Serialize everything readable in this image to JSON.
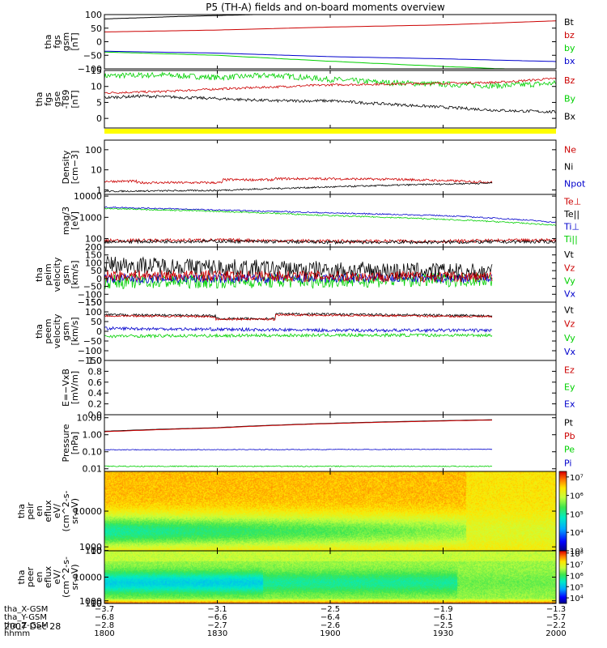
{
  "title": "P5 (TH-A) fields and on-board moments overview",
  "date_label": "2007 Dec 28",
  "colors": {
    "black": "#000000",
    "red": "#cc0000",
    "green": "#00d000",
    "blue": "#0000cc",
    "yellow": "#ffff00"
  },
  "chart_data": [
    {
      "type": "line",
      "ylabel": [
        "tha",
        "fgs",
        "gsm",
        "[nT]"
      ],
      "ylim": [
        -100,
        100
      ],
      "yticks": [
        {
          "v": 100,
          "t": "100"
        },
        {
          "v": 50,
          "t": "50"
        },
        {
          "v": 0,
          "t": "0"
        },
        {
          "v": -50,
          "t": "−50"
        },
        {
          "v": -100,
          "t": "−100"
        }
      ],
      "legend": [
        {
          "name": "Bt",
          "color": "black"
        },
        {
          "name": "bz",
          "color": "red"
        },
        {
          "name": "by",
          "color": "green"
        },
        {
          "name": "bx",
          "color": "blue"
        }
      ],
      "series": [
        {
          "name": "Bt",
          "color": "black",
          "x": [
            1800,
            1820,
            1840,
            1850
          ],
          "y": [
            84,
            93,
            100,
            101
          ]
        },
        {
          "name": "bz",
          "color": "red",
          "x": [
            1800,
            1830,
            1900,
            1930,
            2000
          ],
          "y": [
            36,
            43,
            54,
            62,
            77
          ]
        },
        {
          "name": "by",
          "color": "green",
          "x": [
            1800,
            1830,
            1900,
            1930,
            1950
          ],
          "y": [
            -38,
            -50,
            -72,
            -91,
            -102
          ]
        },
        {
          "name": "bx",
          "color": "blue",
          "x": [
            1800,
            1830,
            1900,
            1930,
            2000
          ],
          "y": [
            -35,
            -42,
            -55,
            -63,
            -73
          ]
        }
      ]
    },
    {
      "type": "line",
      "ylabel": [
        "tha",
        "fgs",
        "gse",
        "-T89",
        "[nT]"
      ],
      "ylim": [
        -3,
        15
      ],
      "yticks": [
        {
          "v": 15,
          "t": "15"
        },
        {
          "v": 10,
          "t": "10"
        },
        {
          "v": 5,
          "t": "5"
        },
        {
          "v": 0,
          "t": "0"
        }
      ],
      "legend": [
        {
          "name": "Bz",
          "color": "red"
        },
        {
          "name": "By",
          "color": "green"
        },
        {
          "name": "Bx",
          "color": "black"
        }
      ],
      "series": [
        {
          "name": "By",
          "color": "green",
          "noise": 0.9,
          "x": [
            1800,
            1815,
            1830,
            1845,
            1900,
            1915,
            1930,
            1945,
            2000
          ],
          "y": [
            13.3,
            13.6,
            12.8,
            13.5,
            12.2,
            11.2,
            10.7,
            10.2,
            11
          ]
        },
        {
          "name": "Bz",
          "color": "red",
          "noise": 0.35,
          "x": [
            1800,
            1815,
            1830,
            1900,
            1930,
            1945,
            2000
          ],
          "y": [
            8,
            8.4,
            9.2,
            10.5,
            11,
            11.3,
            12.5
          ]
        },
        {
          "name": "Bx",
          "color": "black",
          "noise": 0.45,
          "x": [
            1800,
            1810,
            1830,
            1845,
            1900,
            1930,
            1945,
            2000
          ],
          "y": [
            6.5,
            7,
            6.2,
            5.5,
            5.5,
            3.5,
            2.5,
            2
          ]
        }
      ]
    },
    {
      "type": "line",
      "log": true,
      "ylabel": [
        "Density",
        "[cm−3]"
      ],
      "ylim": [
        0.6,
        300
      ],
      "yticks": [
        {
          "v": 100,
          "t": "100"
        },
        {
          "v": 10,
          "t": "10"
        },
        {
          "v": 1,
          "t": "1"
        }
      ],
      "legend": [
        {
          "name": "Ne",
          "color": "red"
        },
        {
          "name": "Ni",
          "color": "black"
        },
        {
          "name": "Npot",
          "color": "blue"
        }
      ],
      "series": [
        {
          "name": "Ne",
          "color": "red",
          "noise": 0.06,
          "x": [
            1800,
            1808,
            1809,
            1831,
            1832,
            1845,
            1846,
            1900,
            1920,
            1943
          ],
          "y": [
            2.7,
            2.7,
            2.3,
            2.3,
            3.2,
            3.2,
            3.6,
            3.6,
            3.3,
            2.4
          ]
        },
        {
          "name": "Ni",
          "color": "black",
          "noise": 0.04,
          "x": [
            1800,
            1830,
            1900,
            1943
          ],
          "y": [
            0.85,
            0.95,
            1.4,
            2.2
          ]
        }
      ]
    },
    {
      "type": "line",
      "log": true,
      "ylabel": [
        "mag/3",
        "[eV]"
      ],
      "ylim": [
        40,
        12000
      ],
      "yticks": [
        {
          "v": 10000,
          "t": "10000"
        },
        {
          "v": 1000,
          "t": "1000"
        },
        {
          "v": 100,
          "t": "100"
        }
      ],
      "legend": [
        {
          "name": "Te⊥",
          "color": "red"
        },
        {
          "name": "Te||",
          "color": "black"
        },
        {
          "name": "Ti⊥",
          "color": "blue"
        },
        {
          "name": "Ti||",
          "color": "green"
        }
      ],
      "series": [
        {
          "name": "Ti⊥",
          "color": "blue",
          "noise": 0.03,
          "x": [
            1800,
            1830,
            1900,
            1930,
            2000
          ],
          "y": [
            3000,
            2200,
            1600,
            1200,
            580
          ]
        },
        {
          "name": "Ti||",
          "color": "green",
          "noise": 0.03,
          "x": [
            1800,
            1830,
            1900,
            1930,
            2000
          ],
          "y": [
            2600,
            1900,
            1200,
            800,
            420
          ]
        },
        {
          "name": "Te⊥",
          "color": "red",
          "noise": 0.08,
          "x": [
            1800,
            1830,
            1900,
            1930,
            2000
          ],
          "y": [
            80,
            85,
            75,
            75,
            85
          ]
        },
        {
          "name": "Te||",
          "color": "black",
          "noise": 0.08,
          "x": [
            1800,
            1830,
            1900,
            1930,
            2000
          ],
          "y": [
            72,
            75,
            68,
            68,
            72
          ]
        }
      ]
    },
    {
      "type": "line",
      "ylabel": [
        "tha",
        "peim",
        "velocity",
        "gsm",
        "[km/s]"
      ],
      "ylim": [
        -150,
        200
      ],
      "yticks": [
        {
          "v": 200,
          "t": "200"
        },
        {
          "v": 150,
          "t": "150"
        },
        {
          "v": 100,
          "t": "100"
        },
        {
          "v": 50,
          "t": "50"
        },
        {
          "v": 0,
          "t": "0"
        },
        {
          "v": -50,
          "t": "−50"
        },
        {
          "v": -100,
          "t": "−100"
        },
        {
          "v": -150,
          "t": "−150"
        }
      ],
      "legend": [
        {
          "name": "Vt",
          "color": "black"
        },
        {
          "name": "Vz",
          "color": "red"
        },
        {
          "name": "Vy",
          "color": "green"
        },
        {
          "name": "Vx",
          "color": "blue"
        }
      ],
      "series": [
        {
          "name": "Vy",
          "color": "green",
          "noise": 45,
          "x": [
            1800,
            1900,
            1943
          ],
          "y": [
            -20,
            -15,
            -5
          ]
        },
        {
          "name": "Vx",
          "color": "blue",
          "noise": 30,
          "x": [
            1800,
            1900,
            1943
          ],
          "y": [
            0,
            0,
            5
          ]
        },
        {
          "name": "Vt",
          "color": "black",
          "noise": 55,
          "x": [
            1800,
            1830,
            1900,
            1943
          ],
          "y": [
            90,
            70,
            55,
            40
          ]
        },
        {
          "name": "Vz",
          "color": "red",
          "noise": 35,
          "x": [
            1800,
            1900,
            1943
          ],
          "y": [
            20,
            15,
            10
          ]
        }
      ]
    },
    {
      "type": "line",
      "ylabel": [
        "tha",
        "peem",
        "velocity",
        "gsm",
        "[km/s]"
      ],
      "ylim": [
        -150,
        150
      ],
      "yticks": [
        {
          "v": 150,
          "t": "150"
        },
        {
          "v": 100,
          "t": "100"
        },
        {
          "v": 50,
          "t": "50"
        },
        {
          "v": 0,
          "t": "0"
        },
        {
          "v": -50,
          "t": "−50"
        },
        {
          "v": -100,
          "t": "−100"
        },
        {
          "v": -150,
          "t": "−150"
        }
      ],
      "legend": [
        {
          "name": "Vt",
          "color": "black"
        },
        {
          "name": "Vz",
          "color": "red"
        },
        {
          "name": "Vy",
          "color": "green"
        },
        {
          "name": "Vx",
          "color": "blue"
        }
      ],
      "series": [
        {
          "name": "Vy",
          "color": "green",
          "noise": 8,
          "x": [
            1800,
            1900,
            1943
          ],
          "y": [
            -25,
            -20,
            -20
          ]
        },
        {
          "name": "Vx",
          "color": "blue",
          "noise": 8,
          "x": [
            1800,
            1830,
            1900,
            1943
          ],
          "y": [
            15,
            10,
            5,
            5
          ]
        },
        {
          "name": "Vt",
          "color": "black",
          "noise": 6,
          "x": [
            1800,
            1829,
            1830,
            1845,
            1846,
            1943
          ],
          "y": [
            85,
            80,
            65,
            65,
            90,
            80
          ]
        },
        {
          "name": "Vz",
          "color": "red",
          "noise": 5,
          "x": [
            1800,
            1829,
            1830,
            1845,
            1846,
            1943
          ],
          "y": [
            80,
            75,
            62,
            62,
            85,
            75
          ]
        }
      ]
    },
    {
      "type": "line",
      "ylabel": [
        "E=−VxB",
        "[mV/m]"
      ],
      "ylim": [
        0,
        1
      ],
      "yticks": [
        {
          "v": 1,
          "t": "1.0"
        },
        {
          "v": 0.8,
          "t": "0.8"
        },
        {
          "v": 0.6,
          "t": "0.6"
        },
        {
          "v": 0.4,
          "t": "0.4"
        },
        {
          "v": 0.2,
          "t": "0.2"
        },
        {
          "v": 0,
          "t": "0.0"
        }
      ],
      "legend": [
        {
          "name": "Ez",
          "color": "red"
        },
        {
          "name": "Ey",
          "color": "green"
        },
        {
          "name": "Ex",
          "color": "blue"
        }
      ],
      "series": []
    },
    {
      "type": "line",
      "log": true,
      "ylabel": [
        "Pressure",
        "[nPa]"
      ],
      "ylim": [
        0.007,
        15
      ],
      "yticks": [
        {
          "v": 10,
          "t": "10.00"
        },
        {
          "v": 1,
          "t": "1.00"
        },
        {
          "v": 0.1,
          "t": "0.10"
        },
        {
          "v": 0.01,
          "t": "0.01"
        }
      ],
      "legend": [
        {
          "name": "Pt",
          "color": "black"
        },
        {
          "name": "Pb",
          "color": "red"
        },
        {
          "name": "Pe",
          "color": "green"
        },
        {
          "name": "Pi",
          "color": "blue"
        }
      ],
      "series": [
        {
          "name": "Pe",
          "color": "green",
          "noise": 0.03,
          "x": [
            1800,
            1943
          ],
          "y": [
            0.014,
            0.014
          ]
        },
        {
          "name": "Pi",
          "color": "blue",
          "noise": 0.02,
          "x": [
            1800,
            1943
          ],
          "y": [
            0.13,
            0.14
          ]
        },
        {
          "name": "Pt",
          "color": "black",
          "noise": 0.0,
          "x": [
            1800,
            1830,
            1900,
            1943
          ],
          "y": [
            1.6,
            2.6,
            4.7,
            7.6
          ]
        },
        {
          "name": "Pb",
          "color": "red",
          "noise": 0.0,
          "x": [
            1800,
            1830,
            1900,
            1943
          ],
          "y": [
            1.5,
            2.5,
            4.5,
            7.3
          ]
        }
      ]
    },
    {
      "type": "heatmap",
      "ylabel": [
        "tha",
        "peir",
        "en",
        "eflux",
        "eV/",
        "(cm^2-s-",
        "sr-eV)"
      ],
      "ylim": [
        8,
        20000
      ],
      "yticks": [
        {
          "v": 10000,
          "t": "10000"
        },
        {
          "v": 1000,
          "t": "1000"
        },
        {
          "v": 100,
          "t": "100"
        },
        {
          "v": 10,
          "t": "10"
        }
      ],
      "colorbar": [
        {
          "v": 7,
          "t": "10⁷"
        },
        {
          "v": 6,
          "t": "10⁶"
        },
        {
          "v": 5,
          "t": "10⁵"
        },
        {
          "v": 4,
          "t": "10⁴"
        },
        {
          "v": 3,
          "t": "10³"
        }
      ],
      "clim": [
        3,
        7.3
      ],
      "model": "ion"
    },
    {
      "type": "heatmap",
      "ylabel": [
        "tha",
        "peer",
        "en",
        "eflux",
        "eV/",
        "(cm^2-s-",
        "sr-eV)"
      ],
      "ylim": [
        8,
        20000
      ],
      "yticks": [
        {
          "v": 10000,
          "t": "10000"
        },
        {
          "v": 1000,
          "t": "1000"
        },
        {
          "v": 100,
          "t": "100"
        },
        {
          "v": 10,
          "t": "10"
        }
      ],
      "colorbar": [
        {
          "v": 8,
          "t": "10⁸"
        },
        {
          "v": 7,
          "t": "10⁷"
        },
        {
          "v": 6,
          "t": "10⁶"
        },
        {
          "v": 5,
          "t": "10⁵"
        },
        {
          "v": 4,
          "t": "10⁴"
        }
      ],
      "clim": [
        3.5,
        8.2
      ],
      "model": "electron"
    }
  ],
  "xaxis": {
    "range": [
      1800,
      2000
    ],
    "ticks": [
      1800,
      1830,
      1900,
      1930,
      2000
    ],
    "rows": [
      {
        "label": "tha_X-GSM",
        "values": [
          "−3.7",
          "−3.1",
          "−2.5",
          "−1.9",
          "−1.3"
        ]
      },
      {
        "label": "tha_Y-GSM",
        "values": [
          "−6.8",
          "−6.6",
          "−6.4",
          "−6.1",
          "−5.7"
        ]
      },
      {
        "label": "tha_Z-GSM",
        "values": [
          "−2.8",
          "−2.7",
          "−2.6",
          "−2.5",
          "−2.2"
        ]
      },
      {
        "label": "hhmm",
        "values": [
          "1800",
          "1830",
          "1900",
          "1930",
          "2000"
        ]
      }
    ]
  }
}
